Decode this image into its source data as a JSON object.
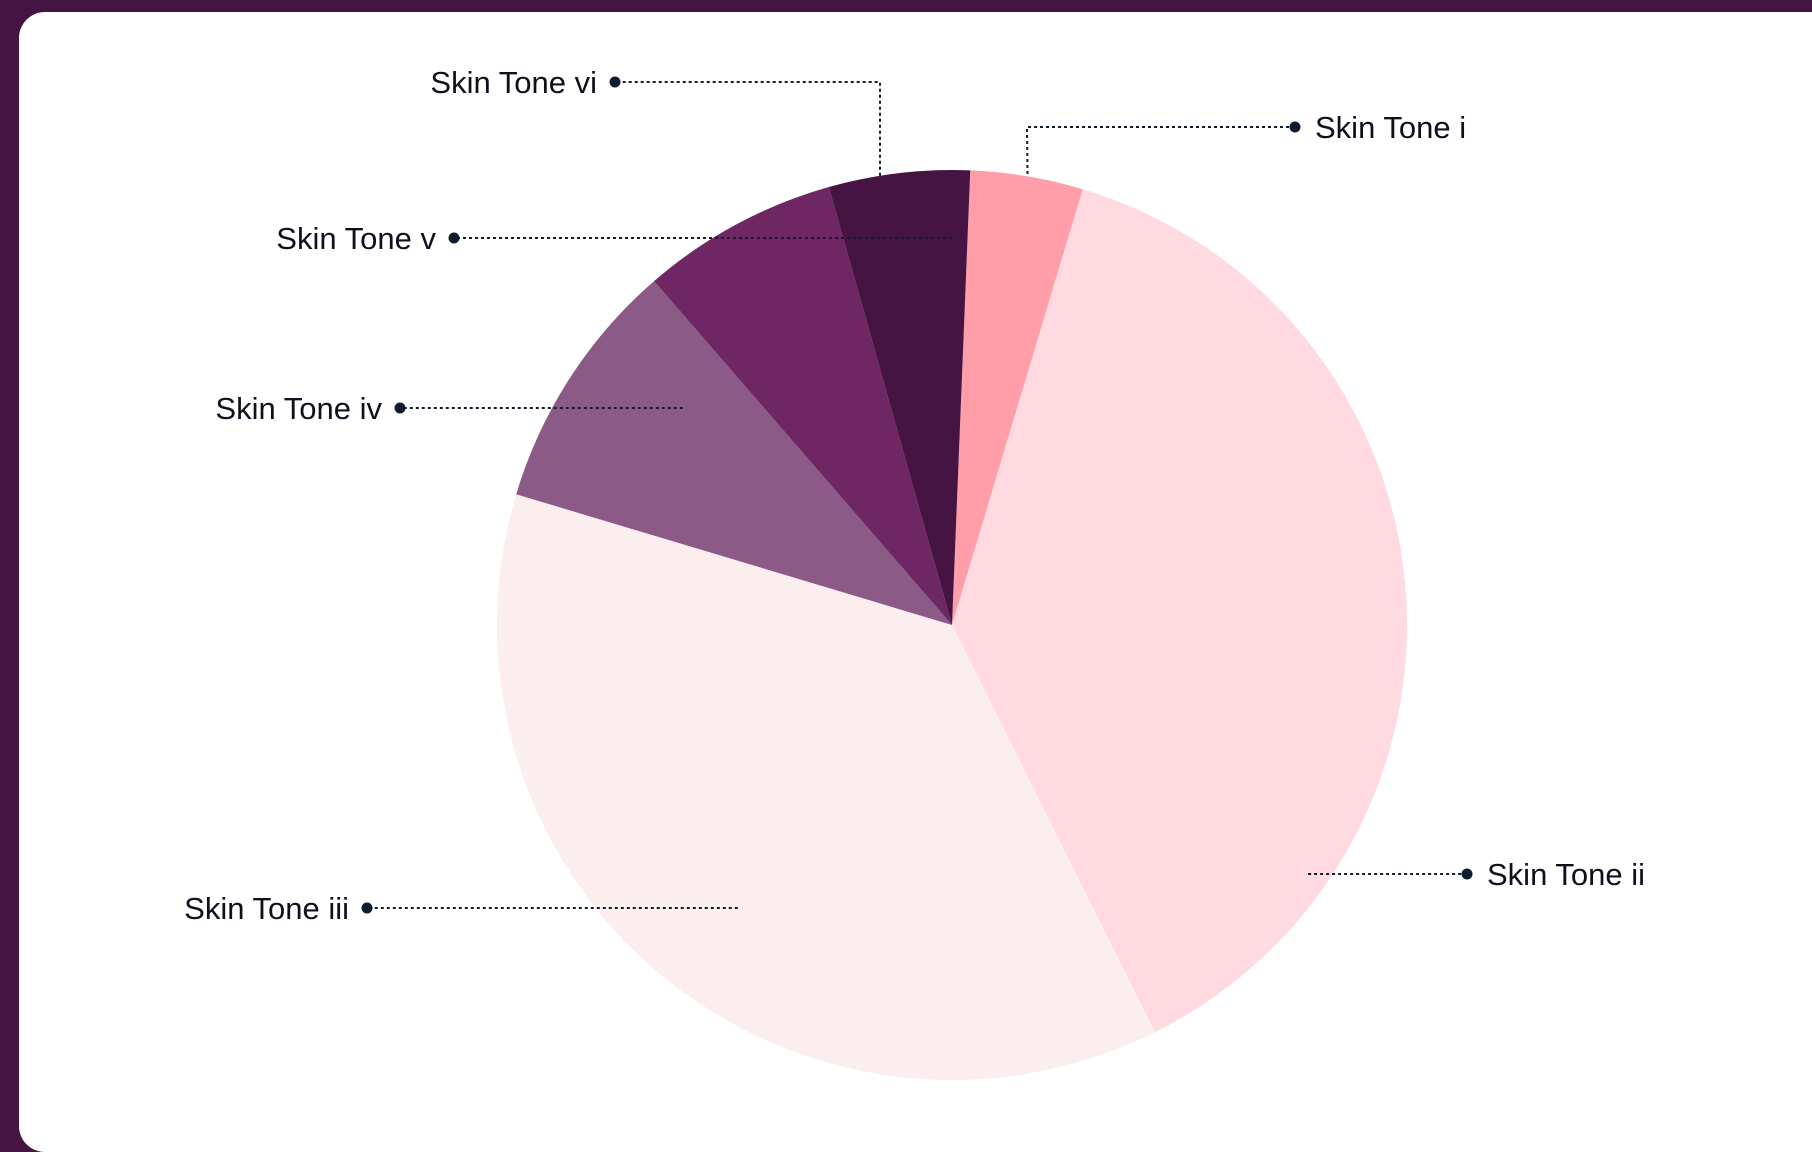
{
  "chart_data": {
    "type": "pie",
    "title": "",
    "start_angle_deg": 2.3,
    "direction": "clockwise",
    "legend": "none",
    "slices": [
      {
        "label": "Skin Tone i",
        "value": 4.0,
        "color": "#FF9EA8"
      },
      {
        "label": "Skin Tone ii",
        "value": 38.0,
        "color": "#FFDAE0"
      },
      {
        "label": "Skin Tone iii",
        "value": 37.0,
        "color": "#FCEDEF"
      },
      {
        "label": "Skin Tone iv",
        "value": 9.0,
        "color": "#8B5A87"
      },
      {
        "label": "Skin Tone v",
        "value": 7.0,
        "color": "#6E2763"
      },
      {
        "label": "Skin Tone vi",
        "value": 5.0,
        "color": "#461442"
      }
    ]
  },
  "colors": {
    "background": "#461442",
    "card": "#FFFFFF",
    "leader": "#0F1E2E",
    "label_text": "#0F0F1E"
  }
}
